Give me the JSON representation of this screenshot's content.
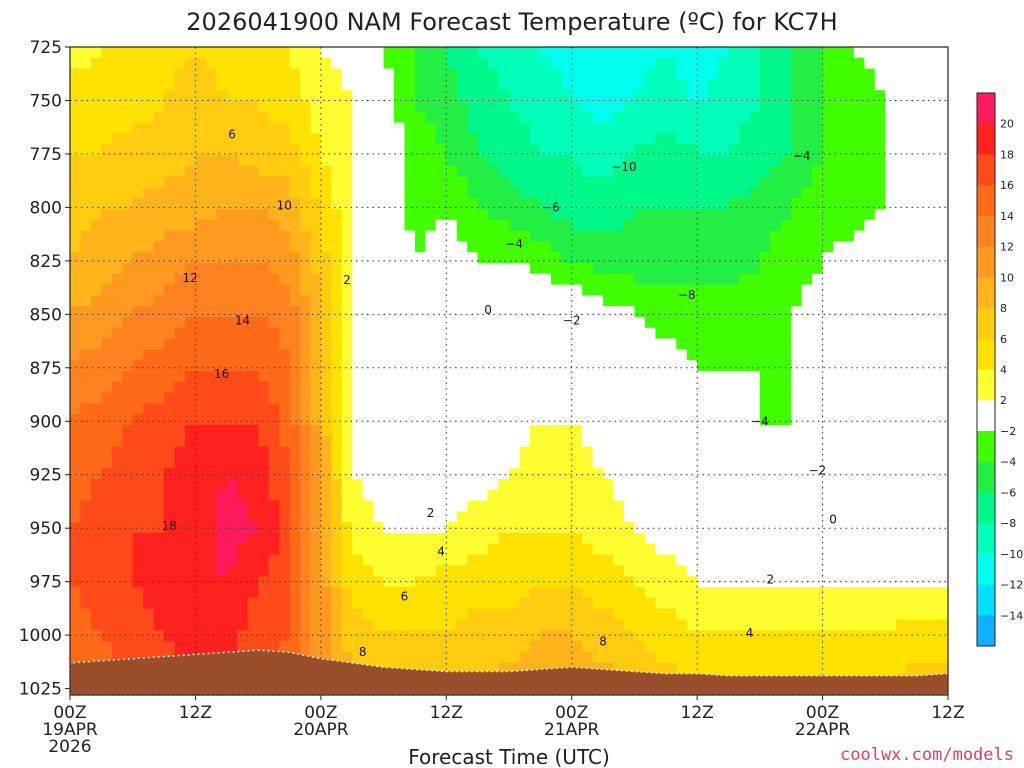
{
  "chart_data": {
    "type": "heatmap",
    "title": "2026041900 NAM Forecast Temperature (ºC) for KC7H",
    "xlabel": "Forecast Time (UTC)",
    "ylabel": "",
    "credit": "coolwx.com/models",
    "x_ticks": [
      {
        "hours": 0,
        "lines": [
          "00Z",
          "19APR",
          "2026"
        ]
      },
      {
        "hours": 12,
        "lines": [
          "12Z"
        ]
      },
      {
        "hours": 24,
        "lines": [
          "00Z",
          "20APR"
        ]
      },
      {
        "hours": 36,
        "lines": [
          "12Z"
        ]
      },
      {
        "hours": 48,
        "lines": [
          "00Z",
          "21APR"
        ]
      },
      {
        "hours": 60,
        "lines": [
          "12Z"
        ]
      },
      {
        "hours": 72,
        "lines": [
          "00Z",
          "22APR"
        ]
      },
      {
        "hours": 84,
        "lines": [
          "12Z"
        ]
      }
    ],
    "xlim": [
      0,
      84
    ],
    "y_ticks": [
      725,
      750,
      775,
      800,
      825,
      850,
      875,
      900,
      925,
      950,
      975,
      1000,
      1025
    ],
    "ylim": [
      725,
      1028
    ],
    "grid": true,
    "colorbar": {
      "labels": [
        "20",
        "18",
        "16",
        "14",
        "12",
        "10",
        "8",
        "6",
        "4",
        "2",
        "−2",
        "−4",
        "−6",
        "−8",
        "−10",
        "−12",
        "−14"
      ],
      "colors": [
        "#ff1a5e",
        "#ff2020",
        "#ff4a1a",
        "#ff6a18",
        "#ff8220",
        "#ff9a20",
        "#ffb41c",
        "#ffcc10",
        "#ffe200",
        "#ffff30",
        "#ffffff",
        "#42ff00",
        "#22ee44",
        "#00f88a",
        "#00ffbb",
        "#00ffee",
        "#00e0ff",
        "#10b0ff"
      ]
    },
    "times": [
      0,
      3,
      6,
      9,
      12,
      15,
      18,
      21,
      24,
      27,
      30,
      33,
      36,
      39,
      42,
      45,
      48,
      51,
      54,
      57,
      60,
      63,
      66,
      69,
      72,
      75,
      78,
      81,
      84
    ],
    "levels": [
      725,
      750,
      775,
      800,
      825,
      850,
      875,
      900,
      925,
      950,
      975,
      1000,
      1025
    ],
    "values": [
      [
        3,
        4,
        5,
        5,
        6,
        5,
        4,
        4,
        2,
        1,
        -4,
        -6,
        -8,
        -10,
        -11,
        -12,
        -13,
        -14,
        -13,
        -12,
        -14,
        -12,
        -10,
        -8,
        -6,
        -4,
        -3,
        -2,
        -1
      ],
      [
        5,
        5,
        5,
        6,
        7,
        6,
        6,
        5,
        3,
        2,
        -3,
        -6,
        -7,
        -9,
        -10,
        -11,
        -12,
        -13,
        -12,
        -11,
        -12,
        -11,
        -10,
        -8,
        -6,
        -5,
        -4,
        -3,
        -2
      ],
      [
        6,
        6,
        7,
        7,
        8,
        8,
        7,
        7,
        4,
        2,
        -2,
        -5,
        -6,
        -8,
        -9,
        -10,
        -10,
        -11,
        -10,
        -9,
        -10,
        -10,
        -9,
        -8,
        -6,
        -5,
        -4,
        -3,
        -2
      ],
      [
        7,
        8,
        8,
        9,
        9,
        10,
        10,
        9,
        6,
        2,
        -2,
        -5,
        -4,
        -6,
        -7,
        -8,
        -9,
        -9,
        -8,
        -8,
        -8,
        -8,
        -7,
        -6,
        -5,
        -5,
        -4,
        -3,
        -2
      ],
      [
        8,
        9,
        10,
        11,
        12,
        12,
        12,
        11,
        7,
        2,
        -1,
        -4,
        -3,
        -4,
        -4,
        -5,
        -6,
        -7,
        -7,
        -7,
        -7,
        -7,
        -6,
        -5,
        -4,
        -3,
        -2,
        -1,
        0
      ],
      [
        10,
        11,
        12,
        13,
        14,
        14,
        14,
        13,
        8,
        2,
        -1,
        -3,
        -1,
        -1,
        0,
        -1,
        -2,
        -3,
        -4,
        -5,
        -5,
        -5,
        -5,
        -4,
        -3,
        -2,
        0,
        1,
        2
      ],
      [
        12,
        13,
        14,
        15,
        16,
        16,
        16,
        14,
        9,
        2,
        0,
        -3,
        0,
        0,
        0,
        1,
        0,
        -1,
        -2,
        -3,
        -4,
        -4,
        -4,
        -4,
        -3,
        -1,
        0,
        1,
        2
      ],
      [
        14,
        15,
        16,
        17,
        18,
        18,
        18,
        15,
        9,
        2,
        0,
        -2,
        0,
        0,
        1,
        2,
        2,
        1,
        0,
        -1,
        -2,
        -3,
        -4,
        -4,
        -3,
        -2,
        -1,
        0,
        1
      ],
      [
        15,
        16,
        17,
        18,
        19,
        20,
        19,
        16,
        10,
        2,
        1,
        0,
        1,
        1,
        2,
        3,
        3,
        2,
        1,
        0,
        -1,
        -1,
        -2,
        -2,
        -2,
        -1,
        0,
        0,
        1
      ],
      [
        16,
        17,
        18,
        18,
        19,
        21,
        20,
        17,
        10,
        3,
        2,
        2,
        2,
        3,
        4,
        4,
        4,
        3,
        2,
        1,
        0,
        0,
        0,
        0,
        0,
        0,
        0,
        0,
        1
      ],
      [
        16,
        17,
        18,
        19,
        19,
        20,
        18,
        17,
        11,
        5,
        4,
        4,
        5,
        5,
        5,
        6,
        6,
        5,
        4,
        3,
        2,
        2,
        2,
        2,
        2,
        2,
        2,
        2,
        2
      ],
      [
        15,
        16,
        17,
        18,
        19,
        19,
        17,
        16,
        11,
        7,
        6,
        6,
        6,
        7,
        7,
        8,
        8,
        7,
        6,
        5,
        4,
        4,
        4,
        4,
        4,
        4,
        4,
        5,
        5
      ],
      [
        14,
        15,
        16,
        17,
        18,
        18,
        16,
        15,
        11,
        8,
        8,
        8,
        8,
        8,
        9,
        9,
        10,
        9,
        8,
        7,
        6,
        6,
        6,
        6,
        6,
        6,
        6,
        7,
        7
      ]
    ],
    "contour_labels": [
      {
        "text": "6",
        "t": 15.5,
        "p": 766
      },
      {
        "text": "10",
        "t": 20.5,
        "p": 799
      },
      {
        "text": "12",
        "t": 11.5,
        "p": 833
      },
      {
        "text": "14",
        "t": 16.5,
        "p": 853
      },
      {
        "text": "16",
        "t": 14.5,
        "p": 878
      },
      {
        "text": "18",
        "t": 9.5,
        "p": 949
      },
      {
        "text": "2",
        "t": 26.5,
        "p": 834
      },
      {
        "text": "2",
        "t": 34.5,
        "p": 943
      },
      {
        "text": "4",
        "t": 35.5,
        "p": 961
      },
      {
        "text": "6",
        "t": 32,
        "p": 982
      },
      {
        "text": "8",
        "t": 28,
        "p": 1008
      },
      {
        "text": "8",
        "t": 51,
        "p": 1003
      },
      {
        "text": "0",
        "t": 40,
        "p": 848
      },
      {
        "text": "−2",
        "t": 48,
        "p": 853
      },
      {
        "text": "−4",
        "t": 42.5,
        "p": 817
      },
      {
        "text": "−6",
        "t": 46,
        "p": 800
      },
      {
        "text": "−10",
        "t": 53,
        "p": 781
      },
      {
        "text": "−8",
        "t": 59,
        "p": 841
      },
      {
        "text": "−4",
        "t": 70,
        "p": 776
      },
      {
        "text": "−4",
        "t": 66,
        "p": 900
      },
      {
        "text": "−2",
        "t": 71.5,
        "p": 923
      },
      {
        "text": "0",
        "t": 73,
        "p": 946
      },
      {
        "text": "2",
        "t": 67,
        "p": 974
      },
      {
        "text": "4",
        "t": 65,
        "p": 999
      }
    ],
    "terrain_color": "#9a4e2a"
  }
}
